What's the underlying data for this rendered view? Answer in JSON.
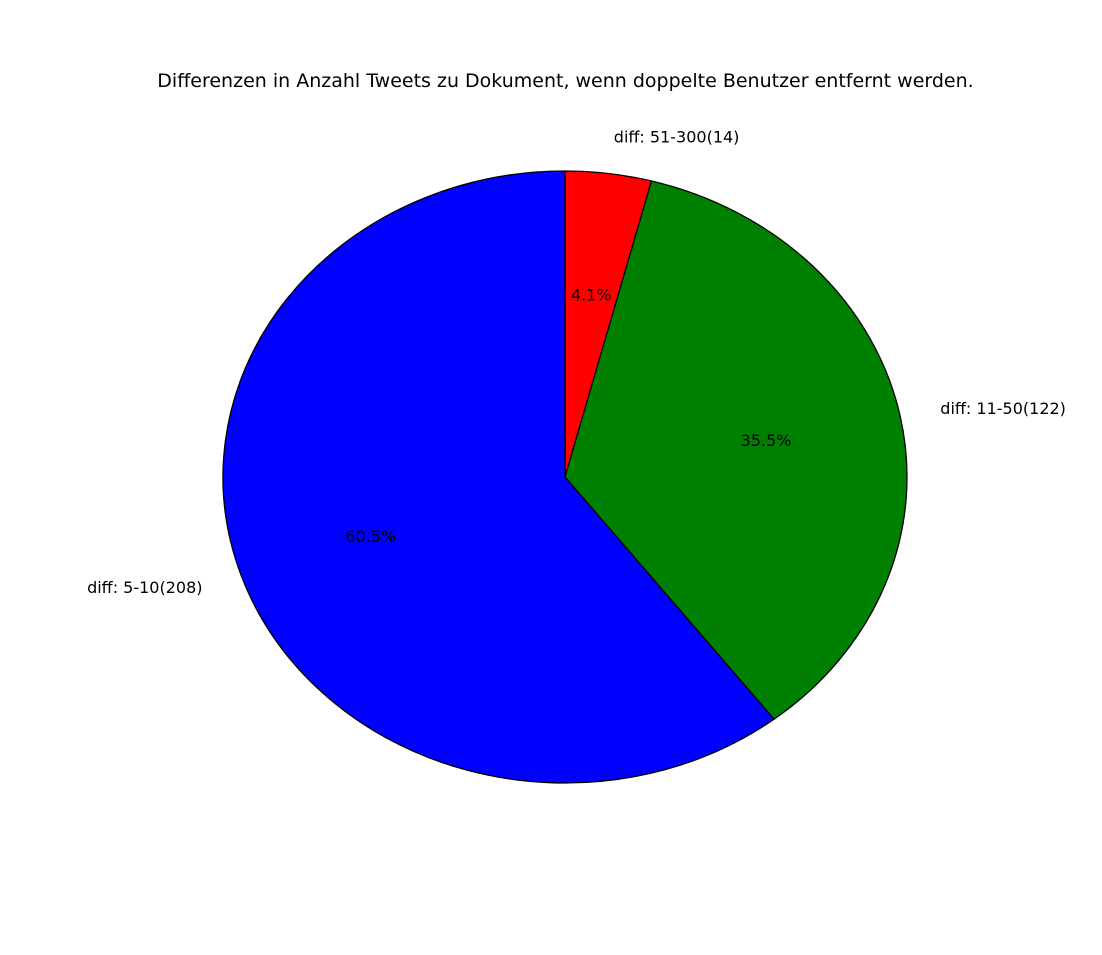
{
  "chart_data": {
    "type": "pie",
    "title": "Differenzen in Anzahl Tweets zu Dokument, wenn doppelte Benutzer entfernt werden.",
    "start_angle_deg": 90,
    "direction": "clockwise",
    "slices": [
      {
        "label": "diff: 51-300(14)",
        "value": 14,
        "percent_label": "4.1%",
        "color": "#ff0000"
      },
      {
        "label": "diff: 11-50(122)",
        "value": 122,
        "percent_label": "35.5%",
        "color": "#008000"
      },
      {
        "label": "diff: 5-10(208)",
        "value": 208,
        "percent_label": "60.5%",
        "color": "#0000ff"
      }
    ],
    "edge_color": "#000000"
  }
}
